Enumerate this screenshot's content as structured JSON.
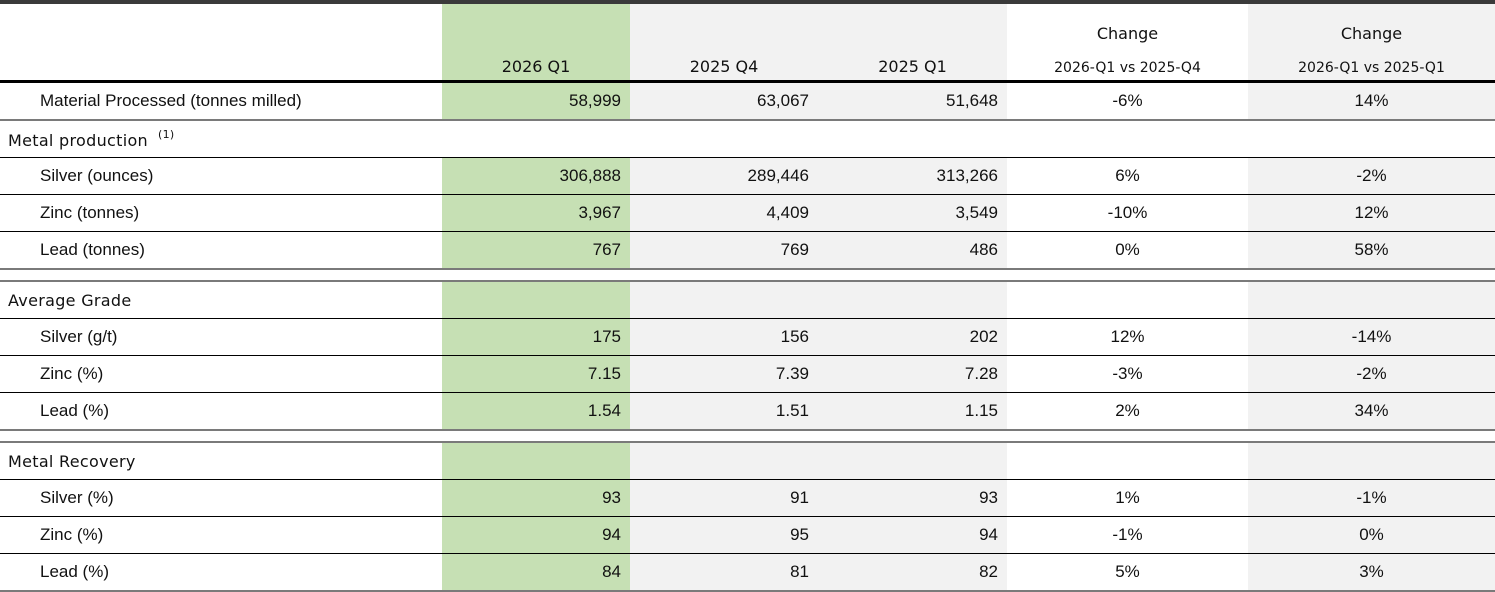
{
  "header": {
    "columns": [
      "2026 Q1",
      "2025 Q4",
      "2025 Q1"
    ],
    "change1": {
      "title": "Change",
      "subtitle": "2026-Q1 vs 2025-Q4"
    },
    "change2": {
      "title": "Change",
      "subtitle": "2026-Q1 vs 2025-Q1"
    }
  },
  "material": {
    "label": "Material Processed (tonnes milled)",
    "values": [
      "58,999",
      "63,067",
      "51,648",
      "-6%",
      "14%"
    ]
  },
  "metal_production": {
    "title": "Metal production",
    "footnote": "(1)",
    "rows": [
      {
        "label": "Silver (ounces)",
        "values": [
          "306,888",
          "289,446",
          "313,266",
          "6%",
          "-2%"
        ]
      },
      {
        "label": "Zinc (tonnes)",
        "values": [
          "3,967",
          "4,409",
          "3,549",
          "-10%",
          "12%"
        ]
      },
      {
        "label": "Lead (tonnes)",
        "values": [
          "767",
          "769",
          "486",
          "0%",
          "58%"
        ]
      }
    ]
  },
  "average_grade": {
    "title": "Average Grade",
    "rows": [
      {
        "label": "Silver (g/t)",
        "values": [
          "175",
          "156",
          "202",
          "12%",
          "-14%"
        ]
      },
      {
        "label": "Zinc (%)",
        "values": [
          "7.15",
          "7.39",
          "7.28",
          "-3%",
          "-2%"
        ]
      },
      {
        "label": "Lead (%)",
        "values": [
          "1.54",
          "1.51",
          "1.15",
          "2%",
          "34%"
        ]
      }
    ]
  },
  "metal_recovery": {
    "title": "Metal Recovery",
    "rows": [
      {
        "label": "Silver (%)",
        "values": [
          "93",
          "91",
          "93",
          "1%",
          "-1%"
        ]
      },
      {
        "label": "Zinc (%)",
        "values": [
          "94",
          "95",
          "94",
          "-1%",
          "0%"
        ]
      },
      {
        "label": "Lead (%)",
        "values": [
          "84",
          "81",
          "82",
          "5%",
          "3%"
        ]
      }
    ]
  },
  "colors": {
    "current_quarter": "#c6e0b4",
    "shaded": "#f2f2f2"
  }
}
